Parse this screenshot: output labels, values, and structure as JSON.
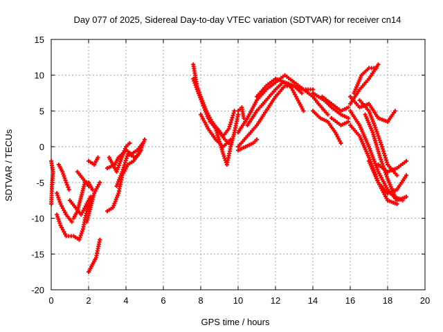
{
  "chart_data": {
    "type": "scatter",
    "title": "Day 077 of 2025, Sidereal Day-to-day VTEC variation (SDTVAR) for receiver cn14",
    "xlabel": "GPS time / hours",
    "ylabel": "SDTVAR / TECUs",
    "xlim": [
      0,
      20
    ],
    "ylim": [
      -20,
      15
    ],
    "xticks": [
      0,
      2,
      4,
      6,
      8,
      10,
      12,
      14,
      16,
      18,
      20
    ],
    "yticks": [
      -20,
      -15,
      -10,
      -5,
      0,
      5,
      10,
      15
    ],
    "grid": true,
    "marker": "+",
    "color": "#ff0000",
    "series": [
      {
        "name": "s1",
        "points": [
          [
            0.0,
            -2.0
          ],
          [
            0.1,
            -3.5
          ],
          [
            0.05,
            -5.0
          ],
          [
            0.0,
            -8.0
          ]
        ]
      },
      {
        "name": "s2",
        "points": [
          [
            0.4,
            -2.5
          ],
          [
            0.6,
            -3.5
          ],
          [
            0.8,
            -5.0
          ],
          [
            0.95,
            -6.0
          ]
        ]
      },
      {
        "name": "s3",
        "points": [
          [
            0.3,
            -6.5
          ],
          [
            0.5,
            -8.0
          ],
          [
            0.8,
            -9.5
          ],
          [
            1.1,
            -10.5
          ]
        ]
      },
      {
        "name": "s4",
        "points": [
          [
            0.3,
            -9.5
          ],
          [
            0.5,
            -11.0
          ],
          [
            0.8,
            -12.5
          ],
          [
            1.2,
            -12.5
          ],
          [
            1.5,
            -13.0
          ],
          [
            1.7,
            -11.5
          ],
          [
            1.9,
            -9.0
          ],
          [
            2.2,
            -7.0
          ]
        ]
      },
      {
        "name": "s5",
        "points": [
          [
            1.0,
            -7.5
          ],
          [
            1.3,
            -8.5
          ],
          [
            1.6,
            -9.5
          ],
          [
            1.9,
            -8.0
          ],
          [
            2.1,
            -7.0
          ]
        ]
      },
      {
        "name": "s6",
        "points": [
          [
            1.2,
            -10.0
          ],
          [
            1.4,
            -9.0
          ],
          [
            1.6,
            -7.0
          ],
          [
            1.8,
            -5.0
          ],
          [
            2.0,
            -5.0
          ],
          [
            2.2,
            -6.0
          ]
        ]
      },
      {
        "name": "s7",
        "points": [
          [
            1.9,
            -10.5
          ],
          [
            2.1,
            -8.5
          ],
          [
            2.3,
            -6.5
          ],
          [
            2.6,
            -5.0
          ]
        ]
      },
      {
        "name": "s8",
        "points": [
          [
            2.0,
            -17.5
          ],
          [
            2.2,
            -16.5
          ],
          [
            2.4,
            -15.5
          ],
          [
            2.6,
            -13.0
          ]
        ]
      },
      {
        "name": "s9",
        "points": [
          [
            2.0,
            -2.0
          ],
          [
            2.3,
            -2.5
          ],
          [
            2.5,
            -1.5
          ]
        ]
      },
      {
        "name": "s10",
        "points": [
          [
            1.4,
            -3.5
          ],
          [
            1.7,
            -4.5
          ],
          [
            2.0,
            -5.5
          ]
        ]
      },
      {
        "name": "s11",
        "points": [
          [
            3.0,
            -3.0
          ],
          [
            3.4,
            -2.5
          ],
          [
            3.6,
            -1.5
          ],
          [
            4.0,
            -0.5
          ],
          [
            4.3,
            -1.0
          ],
          [
            4.6,
            -0.5
          ],
          [
            4.9,
            0.5
          ]
        ]
      },
      {
        "name": "s12",
        "points": [
          [
            3.0,
            -9.0
          ],
          [
            3.3,
            -8.5
          ],
          [
            3.6,
            -6.5
          ],
          [
            3.8,
            -4.0
          ],
          [
            4.1,
            -2.5
          ],
          [
            4.4,
            -2.0
          ],
          [
            4.7,
            -1.0
          ],
          [
            5.0,
            1.0
          ]
        ]
      },
      {
        "name": "s13",
        "points": [
          [
            3.1,
            -1.5
          ],
          [
            3.3,
            -2.5
          ],
          [
            3.5,
            -3.5
          ],
          [
            3.7,
            -2.0
          ],
          [
            4.0,
            0.0
          ],
          [
            4.2,
            0.5
          ]
        ]
      },
      {
        "name": "s14",
        "points": [
          [
            3.5,
            -5.5
          ],
          [
            3.8,
            -3.5
          ],
          [
            4.1,
            -1.0
          ],
          [
            4.5,
            -1.5
          ],
          [
            4.8,
            -0.5
          ]
        ]
      },
      {
        "name": "s15",
        "points": [
          [
            7.6,
            11.5
          ],
          [
            7.7,
            10.0
          ],
          [
            7.8,
            8.5
          ],
          [
            8.0,
            7.0
          ],
          [
            8.3,
            5.0
          ],
          [
            8.6,
            3.5
          ],
          [
            9.0,
            2.0
          ],
          [
            9.3,
            1.0
          ],
          [
            9.5,
            0.5
          ]
        ]
      },
      {
        "name": "s16",
        "points": [
          [
            7.6,
            9.5
          ],
          [
            7.8,
            8.0
          ],
          [
            8.1,
            6.0
          ],
          [
            8.4,
            4.0
          ],
          [
            8.8,
            2.5
          ],
          [
            9.2,
            -1.0
          ],
          [
            9.4,
            -2.5
          ],
          [
            9.6,
            0.0
          ],
          [
            9.8,
            2.0
          ],
          [
            10.0,
            4.5
          ]
        ]
      },
      {
        "name": "s17",
        "points": [
          [
            8.5,
            3.5
          ],
          [
            8.9,
            2.5
          ],
          [
            9.2,
            1.5
          ],
          [
            9.5,
            2.5
          ],
          [
            9.8,
            5.0
          ]
        ]
      },
      {
        "name": "s18",
        "points": [
          [
            8.0,
            4.5
          ],
          [
            8.4,
            2.5
          ],
          [
            8.8,
            1.0
          ],
          [
            9.2,
            0.0
          ],
          [
            9.6,
            1.0
          ]
        ]
      },
      {
        "name": "s19",
        "points": [
          [
            10.0,
            5.0
          ],
          [
            10.2,
            5.5
          ],
          [
            10.3,
            4.0
          ]
        ]
      },
      {
        "name": "s20",
        "points": [
          [
            10.0,
            0.0
          ],
          [
            10.5,
            1.5
          ],
          [
            11.0,
            3.0
          ],
          [
            11.5,
            5.0
          ],
          [
            12.0,
            7.0
          ],
          [
            12.5,
            8.5
          ],
          [
            13.0,
            8.5
          ],
          [
            13.5,
            8.0
          ],
          [
            14.0,
            8.0
          ]
        ]
      },
      {
        "name": "s21",
        "points": [
          [
            10.0,
            2.0
          ],
          [
            10.5,
            4.0
          ],
          [
            11.0,
            6.5
          ],
          [
            11.5,
            8.0
          ],
          [
            12.0,
            9.0
          ],
          [
            12.5,
            10.0
          ],
          [
            13.0,
            9.0
          ],
          [
            13.5,
            8.0
          ],
          [
            14.0,
            7.0
          ],
          [
            14.3,
            6.0
          ],
          [
            14.8,
            4.5
          ]
        ]
      },
      {
        "name": "s22",
        "points": [
          [
            10.5,
            3.0
          ],
          [
            11.0,
            5.0
          ],
          [
            11.5,
            6.5
          ],
          [
            12.0,
            8.0
          ],
          [
            12.4,
            9.0
          ],
          [
            12.8,
            8.5
          ],
          [
            13.1,
            7.0
          ],
          [
            13.5,
            5.0
          ]
        ]
      },
      {
        "name": "s23",
        "points": [
          [
            10.0,
            -0.5
          ],
          [
            10.4,
            0.0
          ],
          [
            10.8,
            0.5
          ],
          [
            11.0,
            1.0
          ]
        ]
      },
      {
        "name": "s24",
        "points": [
          [
            11.0,
            7.0
          ],
          [
            11.5,
            8.5
          ],
          [
            12.0,
            9.5
          ],
          [
            12.5,
            9.0
          ],
          [
            13.0,
            8.5
          ],
          [
            13.4,
            7.5
          ]
        ]
      },
      {
        "name": "s25",
        "points": [
          [
            14.0,
            7.5
          ],
          [
            14.3,
            7.0
          ],
          [
            14.6,
            6.5
          ],
          [
            15.0,
            5.5
          ],
          [
            15.5,
            4.5
          ],
          [
            15.9,
            4.0
          ]
        ]
      },
      {
        "name": "s26",
        "points": [
          [
            14.0,
            5.0
          ],
          [
            14.4,
            4.0
          ],
          [
            14.8,
            3.5
          ],
          [
            15.2,
            2.0
          ],
          [
            15.5,
            0.5
          ]
        ]
      },
      {
        "name": "s27",
        "points": [
          [
            14.5,
            7.0
          ],
          [
            15.0,
            6.0
          ],
          [
            15.5,
            5.0
          ],
          [
            15.9,
            5.5
          ]
        ]
      },
      {
        "name": "s28",
        "points": [
          [
            15.0,
            4.0
          ],
          [
            15.5,
            3.0
          ],
          [
            15.9,
            3.5
          ]
        ]
      },
      {
        "name": "s29",
        "points": [
          [
            16.0,
            6.0
          ],
          [
            16.5,
            8.0
          ],
          [
            17.0,
            9.5
          ],
          [
            17.5,
            11.5
          ]
        ]
      },
      {
        "name": "s30",
        "points": [
          [
            16.2,
            7.5
          ],
          [
            16.6,
            10.0
          ],
          [
            17.0,
            11.0
          ],
          [
            17.4,
            11.0
          ]
        ]
      },
      {
        "name": "s31",
        "points": [
          [
            16.0,
            7.0
          ],
          [
            16.5,
            5.5
          ],
          [
            17.0,
            6.0
          ],
          [
            17.5,
            4.0
          ],
          [
            18.0,
            3.5
          ],
          [
            18.4,
            5.0
          ]
        ]
      },
      {
        "name": "s32",
        "points": [
          [
            16.0,
            5.0
          ],
          [
            16.5,
            3.0
          ],
          [
            17.0,
            0.0
          ],
          [
            17.5,
            -3.5
          ],
          [
            18.0,
            -6.0
          ],
          [
            18.5,
            -7.5
          ],
          [
            19.0,
            -7.0
          ]
        ]
      },
      {
        "name": "s33",
        "points": [
          [
            16.0,
            3.0
          ],
          [
            16.5,
            1.5
          ],
          [
            17.0,
            -1.5
          ],
          [
            17.5,
            -5.0
          ],
          [
            18.0,
            -7.5
          ],
          [
            18.5,
            -8.0
          ]
        ]
      },
      {
        "name": "s34",
        "points": [
          [
            16.5,
            6.5
          ],
          [
            17.0,
            5.0
          ],
          [
            17.3,
            3.0
          ],
          [
            17.7,
            0.0
          ],
          [
            18.0,
            -2.5
          ],
          [
            18.5,
            -4.0
          ]
        ]
      },
      {
        "name": "s35",
        "points": [
          [
            17.5,
            -2.5
          ],
          [
            18.0,
            -3.5
          ],
          [
            18.5,
            -3.0
          ],
          [
            19.0,
            -2.0
          ]
        ]
      },
      {
        "name": "s36",
        "points": [
          [
            17.0,
            -2.0
          ],
          [
            17.5,
            -5.0
          ],
          [
            18.0,
            -6.5
          ],
          [
            18.5,
            -6.0
          ],
          [
            19.0,
            -4.0
          ]
        ]
      },
      {
        "name": "s37",
        "points": [
          [
            16.8,
            4.5
          ],
          [
            17.2,
            2.0
          ],
          [
            17.6,
            -1.5
          ],
          [
            18.0,
            -4.5
          ],
          [
            18.4,
            -7.0
          ],
          [
            18.8,
            -7.5
          ]
        ]
      }
    ]
  }
}
